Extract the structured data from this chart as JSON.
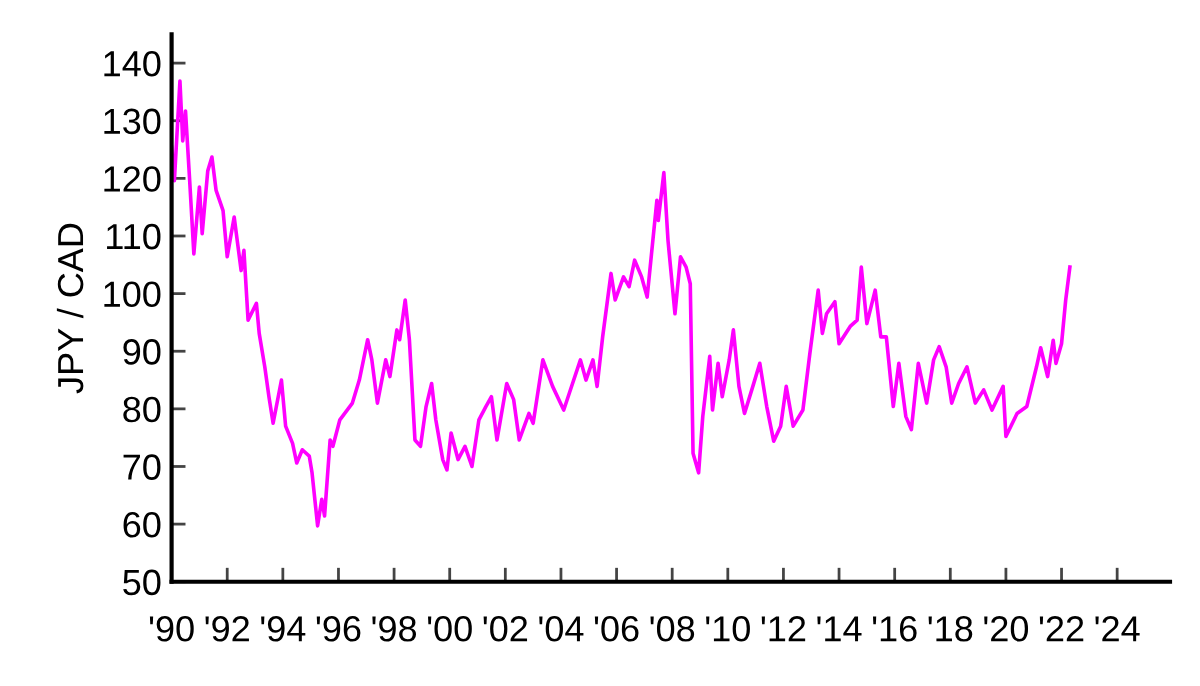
{
  "chart_data": {
    "type": "line",
    "ylabel": "JPY / CAD",
    "x": [
      1990.0,
      1990.1,
      1990.3,
      1990.4,
      1990.5,
      1990.65,
      1990.8,
      1991.0,
      1991.1,
      1991.3,
      1991.45,
      1991.6,
      1991.85,
      1992.0,
      1992.25,
      1992.5,
      1992.6,
      1992.75,
      1993.05,
      1993.15,
      1993.35,
      1993.5,
      1993.65,
      1993.95,
      1994.1,
      1994.35,
      1994.5,
      1994.7,
      1994.95,
      1995.05,
      1995.25,
      1995.4,
      1995.5,
      1995.7,
      1995.8,
      1996.05,
      1996.5,
      1996.75,
      1997.05,
      1997.2,
      1997.4,
      1997.7,
      1997.85,
      1998.1,
      1998.2,
      1998.4,
      1998.55,
      1998.75,
      1998.95,
      1999.15,
      1999.35,
      1999.5,
      1999.75,
      1999.9,
      2000.05,
      2000.3,
      2000.55,
      2000.8,
      2001.05,
      2001.3,
      2001.5,
      2001.7,
      2002.05,
      2002.3,
      2002.5,
      2002.85,
      2003.0,
      2003.35,
      2003.7,
      2004.1,
      2004.3,
      2004.7,
      2004.9,
      2005.15,
      2005.3,
      2005.5,
      2005.8,
      2005.95,
      2006.25,
      2006.45,
      2006.65,
      2006.9,
      2007.1,
      2007.45,
      2007.5,
      2007.7,
      2007.85,
      2008.1,
      2008.3,
      2008.5,
      2008.65,
      2008.75,
      2008.95,
      2009.1,
      2009.35,
      2009.45,
      2009.65,
      2009.8,
      2010.05,
      2010.2,
      2010.4,
      2010.6,
      2010.9,
      2011.15,
      2011.4,
      2011.65,
      2011.9,
      2012.1,
      2012.35,
      2012.7,
      2012.95,
      2013.25,
      2013.4,
      2013.55,
      2013.85,
      2014.0,
      2014.4,
      2014.65,
      2014.8,
      2015.0,
      2015.3,
      2015.5,
      2015.7,
      2015.95,
      2016.15,
      2016.4,
      2016.6,
      2016.85,
      2017.15,
      2017.4,
      2017.6,
      2017.85,
      2018.05,
      2018.3,
      2018.6,
      2018.9,
      2019.2,
      2019.5,
      2019.9,
      2020.0,
      2020.4,
      2020.75,
      2021.1,
      2021.25,
      2021.5,
      2021.7,
      2021.8,
      2022.0,
      2022.15,
      2022.3
    ],
    "series": [
      {
        "color": "#ff00ff",
        "values": [
          125.4,
          119.6,
          136.9,
          126.5,
          131.7,
          119.6,
          106.9,
          118.5,
          110.4,
          121.3,
          123.7,
          117.9,
          114.4,
          106.4,
          113.3,
          104.0,
          107.5,
          95.4,
          98.3,
          93.1,
          87.3,
          82.1,
          77.5,
          85.0,
          77.0,
          74.0,
          70.6,
          72.9,
          71.8,
          68.9,
          59.7,
          64.3,
          61.4,
          74.6,
          73.5,
          78.1,
          81.0,
          85.0,
          92.0,
          88.5,
          81.0,
          88.5,
          85.6,
          93.7,
          92.0,
          98.9,
          92.0,
          74.6,
          73.5,
          80.4,
          84.4,
          78.1,
          71.2,
          69.4,
          75.8,
          71.2,
          73.5,
          70.0,
          78.1,
          80.4,
          82.1,
          74.6,
          84.4,
          81.6,
          74.6,
          79.2,
          77.5,
          88.5,
          83.9,
          79.8,
          82.7,
          88.5,
          85.0,
          88.5,
          83.9,
          92.5,
          103.5,
          98.9,
          102.9,
          101.2,
          105.8,
          102.9,
          99.4,
          116.2,
          112.7,
          121.0,
          109.2,
          96.5,
          106.4,
          104.6,
          101.7,
          72.3,
          68.9,
          78.7,
          89.1,
          79.8,
          87.9,
          82.1,
          88.5,
          93.7,
          83.9,
          79.2,
          83.9,
          87.9,
          80.4,
          74.4,
          77.0,
          83.9,
          77.0,
          79.8,
          89.6,
          100.6,
          93.1,
          96.5,
          98.6,
          91.3,
          94.3,
          95.4,
          104.6,
          94.8,
          100.6,
          92.5,
          92.5,
          80.4,
          87.9,
          78.7,
          76.4,
          87.9,
          81.0,
          88.5,
          90.8,
          87.3,
          81.0,
          84.4,
          87.3,
          81.0,
          83.3,
          79.8,
          83.9,
          75.2,
          79.2,
          80.4,
          87.3,
          90.6,
          85.6,
          91.9,
          87.9,
          91.3,
          98.9,
          104.6
        ]
      }
    ],
    "xlim": [
      1990,
      2025.9
    ],
    "ylim": [
      50,
      145
    ],
    "xticks": [
      {
        "value": 1990,
        "label": "'90"
      },
      {
        "value": 1992,
        "label": "'92"
      },
      {
        "value": 1994,
        "label": "'94"
      },
      {
        "value": 1996,
        "label": "'96"
      },
      {
        "value": 1998,
        "label": "'98"
      },
      {
        "value": 2000,
        "label": "'00"
      },
      {
        "value": 2002,
        "label": "'02"
      },
      {
        "value": 2004,
        "label": "'04"
      },
      {
        "value": 2006,
        "label": "'06"
      },
      {
        "value": 2008,
        "label": "'08"
      },
      {
        "value": 2010,
        "label": "'10"
      },
      {
        "value": 2012,
        "label": "'12"
      },
      {
        "value": 2014,
        "label": "'14"
      },
      {
        "value": 2016,
        "label": "'16"
      },
      {
        "value": 2018,
        "label": "'18"
      },
      {
        "value": 2020,
        "label": "'20"
      },
      {
        "value": 2022,
        "label": "'22"
      },
      {
        "value": 2024,
        "label": "'24"
      }
    ],
    "yticks": [
      50,
      60,
      70,
      80,
      90,
      100,
      110,
      120,
      130,
      140
    ],
    "grid": false,
    "legend": false,
    "marker": "none",
    "line_style": "solid"
  }
}
